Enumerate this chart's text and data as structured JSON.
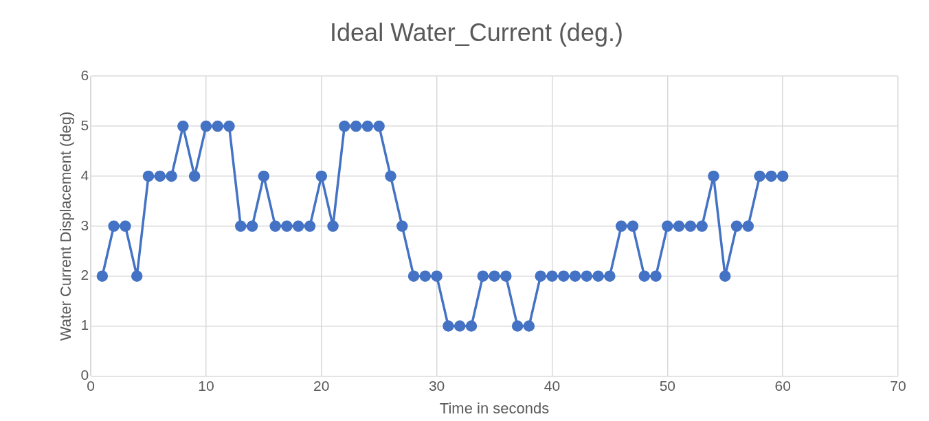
{
  "chart_data": {
    "type": "line",
    "title": "Ideal Water_Current (deg.)",
    "xlabel": "Time in seconds",
    "ylabel": "Water Current Displacement (deg)",
    "x": [
      1,
      2,
      3,
      4,
      5,
      6,
      7,
      8,
      9,
      10,
      11,
      12,
      13,
      14,
      15,
      16,
      17,
      18,
      19,
      20,
      21,
      22,
      23,
      24,
      25,
      26,
      27,
      28,
      29,
      30,
      31,
      32,
      33,
      34,
      35,
      36,
      37,
      38,
      39,
      40,
      41,
      42,
      43,
      44,
      45,
      46,
      47,
      48,
      49,
      50,
      51,
      52,
      53,
      54,
      55,
      56,
      57,
      58,
      59,
      60
    ],
    "series": [
      {
        "color": "#4472c4",
        "values": [
          2,
          3,
          3,
          2,
          4,
          4,
          4,
          5,
          4,
          5,
          5,
          5,
          3,
          3,
          4,
          3,
          3,
          3,
          3,
          4,
          3,
          5,
          5,
          5,
          5,
          4,
          3,
          2,
          2,
          2,
          1,
          1,
          1,
          2,
          2,
          2,
          1,
          1,
          2,
          2,
          2,
          2,
          2,
          2,
          2,
          3,
          3,
          2,
          2,
          3,
          3,
          3,
          3,
          4,
          2,
          3,
          3,
          4,
          4,
          4
        ]
      }
    ],
    "xlim": [
      0,
      70
    ],
    "xticks": [
      0,
      10,
      20,
      30,
      40,
      50,
      60,
      70
    ],
    "ylim": [
      0,
      6
    ],
    "yticks": [
      0,
      1,
      2,
      3,
      4,
      5,
      6
    ],
    "grid": true,
    "legend": false,
    "marker": "circle",
    "line_style": "solid"
  }
}
